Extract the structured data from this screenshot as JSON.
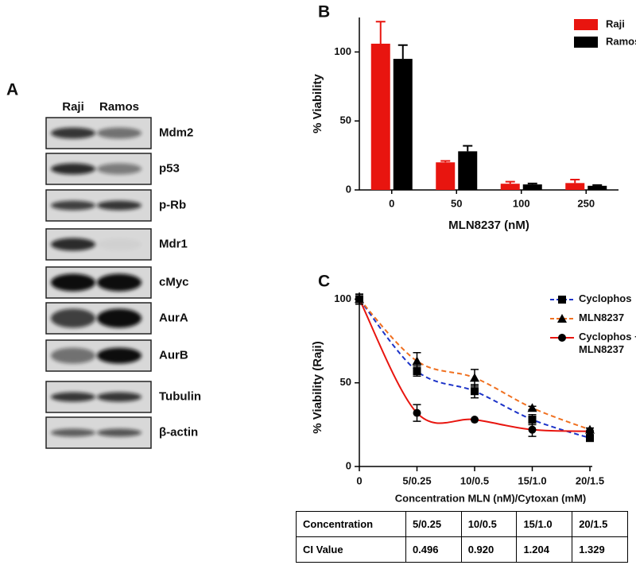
{
  "panels": {
    "a": "A",
    "b": "B",
    "c": "C"
  },
  "blot": {
    "lanes": [
      "Raji",
      "Ramos"
    ],
    "bands": [
      "Mdm2",
      "p53",
      "p-Rb",
      "Mdr1",
      "cMyc",
      "AurA",
      "AurB",
      "Tubulin",
      "β-actin"
    ]
  },
  "chart_data": [
    {
      "type": "bar",
      "ylabel": "% Viability",
      "xlabel": "MLN8237 (nM)",
      "categories": [
        "0",
        "50",
        "100",
        "250"
      ],
      "series": [
        {
          "name": "Raji",
          "color": "#e8150f",
          "values": [
            106,
            20,
            4.5,
            5
          ],
          "errors": [
            16,
            1,
            1.5,
            2.5
          ]
        },
        {
          "name": "Ramos",
          "color": "#000000",
          "values": [
            95,
            28,
            4,
            3
          ],
          "errors": [
            10,
            4,
            0.7,
            0.5
          ]
        }
      ],
      "ylim": [
        0,
        125
      ],
      "yticks": [
        0,
        50,
        100
      ],
      "legend": "top-right"
    },
    {
      "type": "line",
      "ylabel": "% Viability (Raji)",
      "xlabel": "Concentration MLN (nM)/Cytoxan (mM)",
      "x": [
        0,
        5,
        10,
        15,
        20
      ],
      "series": [
        {
          "name": "Cyclophos",
          "color": "#1c33c8",
          "marker": "square",
          "dash": true,
          "values": [
            100,
            57,
            45,
            28,
            17
          ],
          "errors": [
            3,
            3,
            4,
            3,
            1
          ]
        },
        {
          "name": "MLN8237",
          "color": "#f07020",
          "marker": "triangle",
          "dash": true,
          "values": [
            100,
            63,
            53,
            35,
            22
          ],
          "errors": [
            2,
            5,
            5,
            1,
            1
          ]
        },
        {
          "name": "Cyclophos + MLN8237",
          "color": "#e8150f",
          "marker": "circle",
          "dash": false,
          "values": [
            100,
            32,
            28,
            22,
            21
          ],
          "errors": [
            3,
            5,
            0,
            4,
            2
          ]
        }
      ],
      "xlim": [
        0,
        20
      ],
      "xticks": [
        0,
        {
          "value": 5,
          "label": "5/0.25"
        },
        {
          "value": 10,
          "label": "10/0.5"
        },
        {
          "value": 15,
          "label": "15/1.0"
        },
        {
          "value": 20,
          "label": "20/1.5"
        }
      ],
      "ylim": [
        0,
        104
      ],
      "yticks": [
        0,
        50,
        100
      ],
      "legend": "top-right"
    }
  ],
  "table": {
    "rows": [
      [
        "Concentration",
        "5/0.25",
        "10/0.5",
        "15/1.0",
        "20/1.5"
      ],
      [
        "CI Value",
        "0.496",
        "0.920",
        "1.204",
        "1.329"
      ]
    ]
  }
}
